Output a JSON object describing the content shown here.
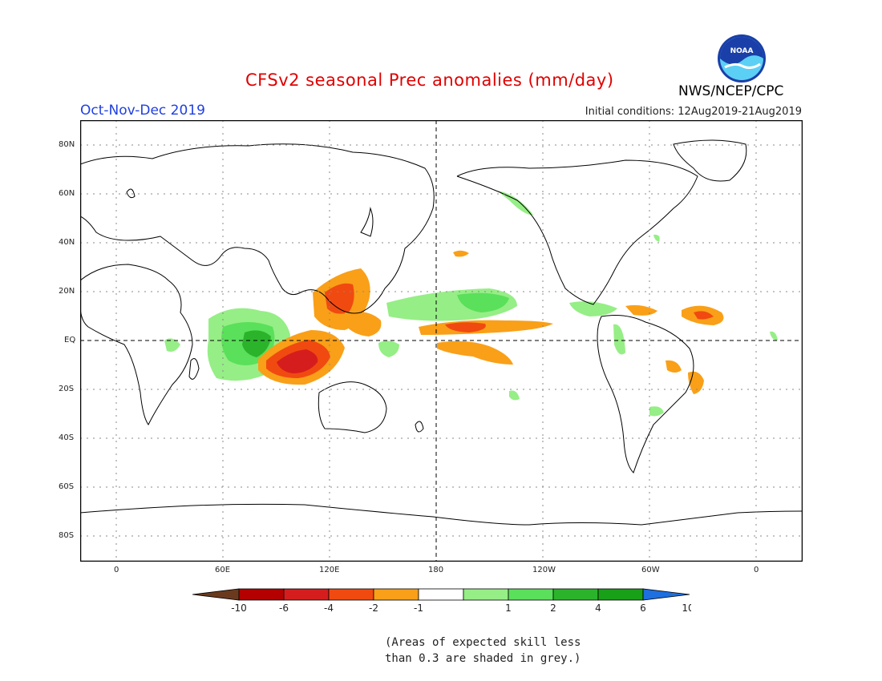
{
  "header": {
    "title": "CFSv2 seasonal Prec anomalies (mm/day)",
    "period": "Oct-Nov-Dec 2019",
    "agency": "NWS/NCEP/CPC",
    "initial_conditions": "Initial conditions: 12Aug2019-21Aug2019",
    "logo_text": "NOAA"
  },
  "map": {
    "lat_labels": [
      "80N",
      "60N",
      "40N",
      "20N",
      "EQ",
      "20S",
      "40S",
      "60S",
      "80S"
    ],
    "lon_labels": [
      "0",
      "60E",
      "120E",
      "180",
      "120W",
      "60W",
      "0"
    ]
  },
  "legend": {
    "tick_labels": [
      "-10",
      "-6",
      "-4",
      "-2",
      "-1",
      "1",
      "2",
      "4",
      "6",
      "10"
    ],
    "colors": [
      "#6b3a1e",
      "#b40000",
      "#d61d1d",
      "#f04a10",
      "#f9a018",
      "#ffffff",
      "#96ee86",
      "#5ae05a",
      "#2bb42b",
      "#18a018",
      "#1e6fe0"
    ]
  },
  "note": {
    "line1": "(Areas of expected skill less",
    "line2": "than 0.3 are shaded in grey.)"
  }
}
